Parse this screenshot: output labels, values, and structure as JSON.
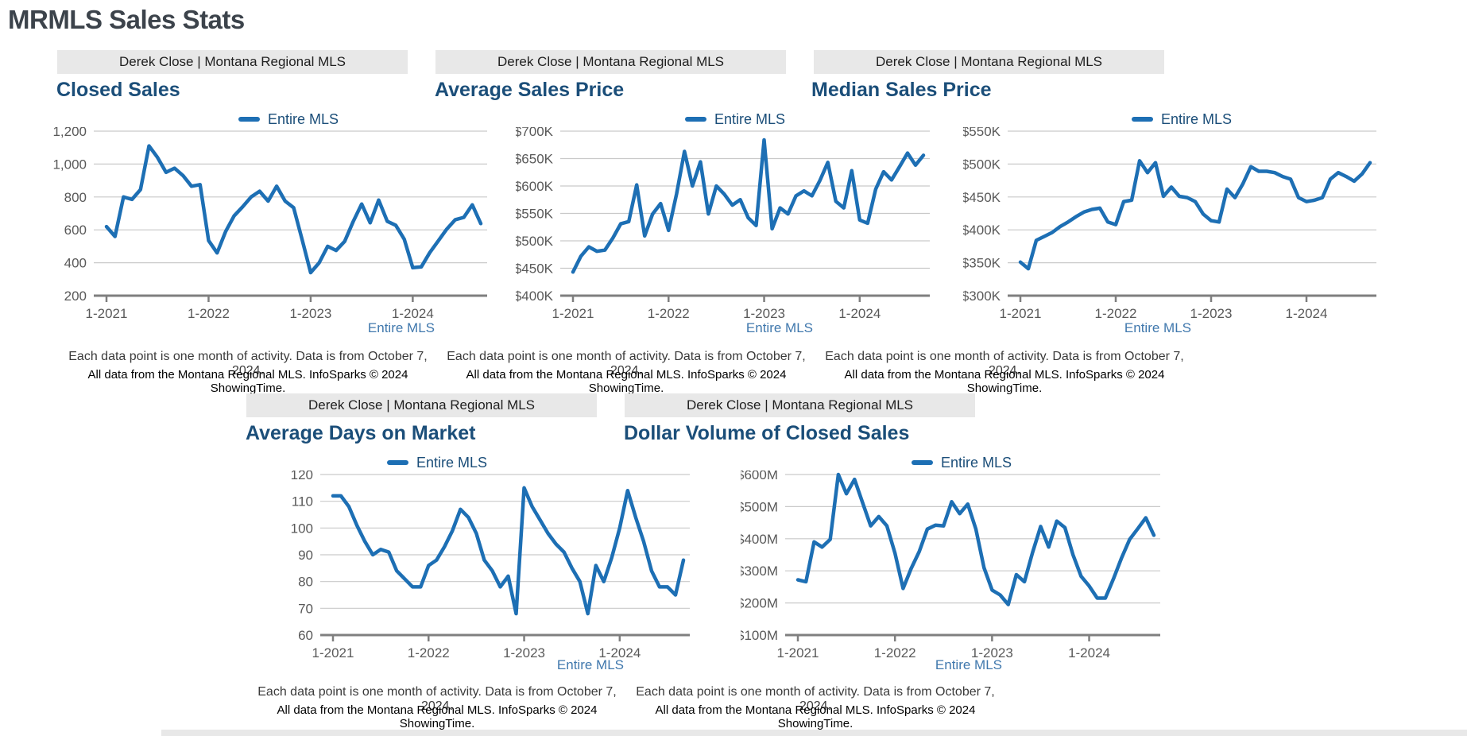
{
  "page_title": "MRMLS Sales Stats",
  "colors": {
    "line": "#1d6fb4",
    "chart_title": "#1b4e79",
    "page_title": "#3c434b",
    "link": "#4078ad",
    "grid": "#c9c9c9",
    "axis": "#7f7f7f",
    "tick_text": "#595959",
    "header_bar_bg": "#e8e8e8"
  },
  "shared": {
    "header_text": "Derek Close | Montana Regional MLS",
    "legend_label": "Entire MLS",
    "footer_link_label": "Entire MLS",
    "note_line1": "Each data point is one month of activity. Data is from October 7, 2024.",
    "note_line2": "All data from the Montana Regional MLS. InfoSparks © 2024 ShowingTime."
  },
  "chart_data": [
    {
      "type": "line",
      "title": "Closed Sales",
      "x_range": [
        "1-2021",
        "9-2024"
      ],
      "x_tick_labels": [
        "1-2021",
        "1-2022",
        "1-2023",
        "1-2024"
      ],
      "ylim": [
        200,
        1200
      ],
      "y_tick_values": [
        200,
        400,
        600,
        800,
        1000,
        1200
      ],
      "y_tick_labels": [
        "200",
        "400",
        "600",
        "800",
        "1,000",
        "1,200"
      ],
      "grid": true,
      "legend_position": "top",
      "series": [
        {
          "name": "Entire MLS",
          "values": [
            620,
            560,
            800,
            785,
            845,
            1110,
            1040,
            950,
            975,
            930,
            865,
            875,
            535,
            460,
            590,
            685,
            740,
            800,
            835,
            775,
            865,
            775,
            735,
            540,
            340,
            400,
            500,
            475,
            530,
            650,
            757,
            643,
            781,
            652,
            628,
            543,
            370,
            375,
            462,
            533,
            605,
            662,
            676,
            752,
            638
          ]
        }
      ]
    },
    {
      "type": "line",
      "title": "Average Sales Price",
      "x_range": [
        "1-2021",
        "9-2024"
      ],
      "x_tick_labels": [
        "1-2021",
        "1-2022",
        "1-2023",
        "1-2024"
      ],
      "ylim": [
        400,
        700
      ],
      "y_tick_values": [
        400,
        450,
        500,
        550,
        600,
        650,
        700
      ],
      "y_tick_labels": [
        "$400K",
        "$450K",
        "$500K",
        "$550K",
        "$600K",
        "$650K",
        "$700K"
      ],
      "grid": true,
      "legend_position": "top",
      "unit": "thousand USD",
      "series": [
        {
          "name": "Entire MLS",
          "values": [
            443,
            472,
            489,
            481,
            483,
            505,
            531,
            535,
            602,
            509,
            549,
            568,
            519,
            585,
            663,
            600,
            644,
            549,
            600,
            585,
            565,
            575,
            542,
            528,
            684,
            522,
            560,
            549,
            582,
            591,
            582,
            610,
            643,
            572,
            560,
            628,
            538,
            532,
            594,
            626,
            611,
            635,
            660,
            638,
            656
          ]
        }
      ]
    },
    {
      "type": "line",
      "title": "Median Sales Price",
      "x_range": [
        "1-2021",
        "9-2024"
      ],
      "x_tick_labels": [
        "1-2021",
        "1-2022",
        "1-2023",
        "1-2024"
      ],
      "ylim": [
        300,
        550
      ],
      "y_tick_values": [
        300,
        350,
        400,
        450,
        500,
        550
      ],
      "y_tick_labels": [
        "$300K",
        "$350K",
        "$400K",
        "$450K",
        "$500K",
        "$550K"
      ],
      "grid": true,
      "legend_position": "top",
      "unit": "thousand USD",
      "series": [
        {
          "name": "Entire MLS",
          "values": [
            351,
            341,
            384,
            390,
            396,
            405,
            412,
            420,
            427,
            431,
            433,
            412,
            408,
            443,
            445,
            505,
            487,
            502,
            451,
            465,
            451,
            449,
            443,
            424,
            414,
            412,
            462,
            449,
            470,
            496,
            489,
            489,
            487,
            481,
            477,
            449,
            443,
            445,
            449,
            477,
            487,
            481,
            474,
            485,
            502
          ]
        }
      ]
    },
    {
      "type": "line",
      "title": "Average Days on Market",
      "x_range": [
        "1-2021",
        "9-2024"
      ],
      "x_tick_labels": [
        "1-2021",
        "1-2022",
        "1-2023",
        "1-2024"
      ],
      "ylim": [
        60,
        120
      ],
      "y_tick_values": [
        60,
        70,
        80,
        90,
        100,
        110,
        120
      ],
      "y_tick_labels": [
        "60",
        "70",
        "80",
        "90",
        "100",
        "110",
        "120"
      ],
      "grid": true,
      "legend_position": "top",
      "unit": "days",
      "series": [
        {
          "name": "Entire MLS",
          "values": [
            112,
            112,
            108,
            101,
            95,
            90,
            92,
            91,
            84,
            81,
            78,
            78,
            86,
            88,
            93,
            99,
            107,
            104,
            98,
            88,
            84,
            78,
            82,
            68,
            115,
            108,
            103,
            98,
            94,
            91,
            85,
            80,
            68,
            86,
            80,
            89,
            100,
            114,
            104,
            95,
            84,
            78,
            78,
            75,
            88
          ]
        }
      ]
    },
    {
      "type": "line",
      "title": "Dollar Volume of Closed Sales",
      "x_range": [
        "1-2021",
        "9-2024"
      ],
      "x_tick_labels": [
        "1-2021",
        "1-2022",
        "1-2023",
        "1-2024"
      ],
      "ylim": [
        100,
        600
      ],
      "y_tick_values": [
        100,
        200,
        300,
        400,
        500,
        600
      ],
      "y_tick_labels": [
        "$100M",
        "$200M",
        "$300M",
        "$400M",
        "$500M",
        "$600M"
      ],
      "grid": true,
      "legend_position": "top",
      "unit": "million USD",
      "series": [
        {
          "name": "Entire MLS",
          "values": [
            272,
            266,
            390,
            374,
            398,
            600,
            540,
            585,
            512,
            440,
            469,
            440,
            355,
            245,
            307,
            360,
            430,
            442,
            440,
            515,
            478,
            508,
            430,
            310,
            240,
            225,
            195,
            288,
            266,
            357,
            438,
            374,
            455,
            435,
            350,
            283,
            253,
            215,
            215,
            275,
            340,
            398,
            431,
            465,
            411
          ]
        }
      ]
    }
  ]
}
